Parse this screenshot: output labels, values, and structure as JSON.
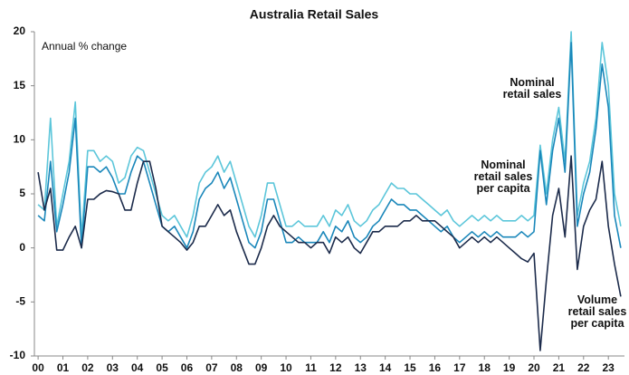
{
  "chart_data": {
    "type": "line",
    "title": "Australia Retail Sales",
    "ylabel": "Annual % change",
    "x": [
      2000,
      2000.25,
      2000.5,
      2000.75,
      2001,
      2001.25,
      2001.5,
      2001.75,
      2002,
      2002.25,
      2002.5,
      2002.75,
      2003,
      2003.25,
      2003.5,
      2003.75,
      2004,
      2004.25,
      2004.5,
      2004.75,
      2005,
      2005.25,
      2005.5,
      2005.75,
      2006,
      2006.25,
      2006.5,
      2006.75,
      2007,
      2007.25,
      2007.5,
      2007.75,
      2008,
      2008.25,
      2008.5,
      2008.75,
      2009,
      2009.25,
      2009.5,
      2009.75,
      2010,
      2010.25,
      2010.5,
      2010.75,
      2011,
      2011.25,
      2011.5,
      2011.75,
      2012,
      2012.25,
      2012.5,
      2012.75,
      2013,
      2013.25,
      2013.5,
      2013.75,
      2014,
      2014.25,
      2014.5,
      2014.75,
      2015,
      2015.25,
      2015.5,
      2015.75,
      2016,
      2016.25,
      2016.5,
      2016.75,
      2017,
      2017.25,
      2017.5,
      2017.75,
      2018,
      2018.25,
      2018.5,
      2018.75,
      2019,
      2019.25,
      2019.5,
      2019.75,
      2020,
      2020.25,
      2020.5,
      2020.75,
      2021,
      2021.25,
      2021.5,
      2021.75,
      2022,
      2022.25,
      2022.5,
      2022.75,
      2023,
      2023.25,
      2023.5
    ],
    "series": [
      {
        "name": "Nominal retail sales",
        "color": "#5cc6da",
        "values": [
          4,
          3.5,
          12,
          2,
          5,
          8,
          13.5,
          1,
          9,
          9,
          8,
          8.5,
          8,
          6,
          6.5,
          8.5,
          9.3,
          9,
          7,
          5,
          3,
          2.5,
          3,
          2,
          1,
          3,
          6,
          7,
          7.5,
          8.5,
          7,
          8,
          6,
          4,
          2,
          1,
          3,
          6,
          6,
          4,
          2,
          2,
          2.5,
          2,
          2,
          2,
          3,
          2,
          3.5,
          3,
          4,
          2.5,
          2,
          2.5,
          3.5,
          4,
          5,
          6,
          5.5,
          5.5,
          5,
          5,
          4.5,
          4,
          3.5,
          3,
          3.5,
          2.5,
          2,
          2.5,
          3,
          2.5,
          3,
          2.5,
          3,
          2.5,
          2.5,
          2.5,
          3,
          2.5,
          3,
          9.5,
          5,
          10,
          13,
          8,
          20,
          3,
          6,
          8,
          12,
          19,
          15,
          5,
          2
        ]
      },
      {
        "name": "Nominal retail sales per capita",
        "color": "#1a87ba",
        "values": [
          3,
          2.5,
          8,
          1.5,
          4,
          7,
          12,
          0,
          7.5,
          7.5,
          7,
          7.5,
          6.5,
          5,
          5,
          7,
          8.5,
          8,
          6,
          4,
          2,
          1.5,
          2,
          1,
          0,
          1.5,
          4.5,
          5.5,
          6,
          7,
          5.5,
          6.5,
          4.5,
          2.5,
          0.5,
          0,
          1.5,
          4.5,
          4.5,
          2.5,
          0.5,
          0.5,
          1,
          0.5,
          0.5,
          0.5,
          1.5,
          0.5,
          2,
          1.5,
          2.5,
          1,
          0.5,
          1,
          2,
          2.5,
          3.5,
          4.5,
          4,
          4,
          3.5,
          3.5,
          3,
          2.5,
          2,
          1.5,
          2,
          1,
          0.5,
          1,
          1.5,
          1,
          1.5,
          1,
          1.5,
          1,
          1,
          1,
          1.5,
          1,
          1.5,
          9,
          4,
          9,
          12,
          7,
          19,
          2,
          5,
          7,
          11,
          17,
          13,
          3,
          0
        ]
      },
      {
        "name": "Volume retail sales per capita",
        "color": "#1c2b4b",
        "values": [
          7,
          3.5,
          5.5,
          -0.2,
          -0.2,
          1,
          2,
          0,
          4.5,
          4.5,
          5,
          5.3,
          5.2,
          5,
          3.5,
          3.5,
          6,
          8,
          8,
          5.5,
          2,
          1.5,
          1,
          0.5,
          -0.2,
          0.5,
          2,
          2,
          3,
          4,
          3,
          3.5,
          1.5,
          0,
          -1.5,
          -1.5,
          0,
          2,
          3,
          2,
          1.5,
          1,
          0.5,
          0.5,
          0,
          0.5,
          0.5,
          -0.5,
          1,
          0.5,
          1,
          0,
          -0.5,
          0.5,
          1.5,
          1.5,
          2,
          2,
          2,
          2.5,
          2.5,
          3,
          2.5,
          2.5,
          2.5,
          2,
          1.5,
          1,
          0,
          0.5,
          1,
          0.5,
          1,
          0.5,
          1,
          0.5,
          0,
          -0.5,
          -1,
          -1.3,
          -0.5,
          -9.5,
          -3,
          3,
          5.5,
          1,
          8.5,
          -2,
          2,
          3.5,
          4.5,
          8,
          2,
          -1.5,
          -4.5
        ]
      }
    ],
    "annotations": [
      {
        "lines": [
          "Nominal",
          "retail sales"
        ]
      },
      {
        "lines": [
          "Nominal",
          "retail sales",
          "per capita"
        ]
      },
      {
        "lines": [
          "Volume",
          "retail sales",
          "per capita"
        ]
      }
    ],
    "xlim": [
      1999.85,
      2023.65
    ],
    "ylim": [
      -10,
      20
    ],
    "yticks": [
      -10,
      -5,
      0,
      5,
      10,
      15,
      20
    ],
    "xticks": [
      {
        "value": 2000,
        "label": "00"
      },
      {
        "value": 2001,
        "label": "01"
      },
      {
        "value": 2002,
        "label": "02"
      },
      {
        "value": 2003,
        "label": "03"
      },
      {
        "value": 2004,
        "label": "04"
      },
      {
        "value": 2005,
        "label": "05"
      },
      {
        "value": 2006,
        "label": "06"
      },
      {
        "value": 2007,
        "label": "07"
      },
      {
        "value": 2008,
        "label": "08"
      },
      {
        "value": 2009,
        "label": "09"
      },
      {
        "value": 2010,
        "label": "10"
      },
      {
        "value": 2011,
        "label": "11"
      },
      {
        "value": 2012,
        "label": "12"
      },
      {
        "value": 2013,
        "label": "13"
      },
      {
        "value": 2014,
        "label": "14"
      },
      {
        "value": 2015,
        "label": "15"
      },
      {
        "value": 2016,
        "label": "16"
      },
      {
        "value": 2017,
        "label": "17"
      },
      {
        "value": 2018,
        "label": "18"
      },
      {
        "value": 2019,
        "label": "19"
      },
      {
        "value": 2020,
        "label": "20"
      },
      {
        "value": 2021,
        "label": "21"
      },
      {
        "value": 2022,
        "label": "22"
      },
      {
        "value": 2023,
        "label": "23"
      }
    ],
    "grid": false
  }
}
